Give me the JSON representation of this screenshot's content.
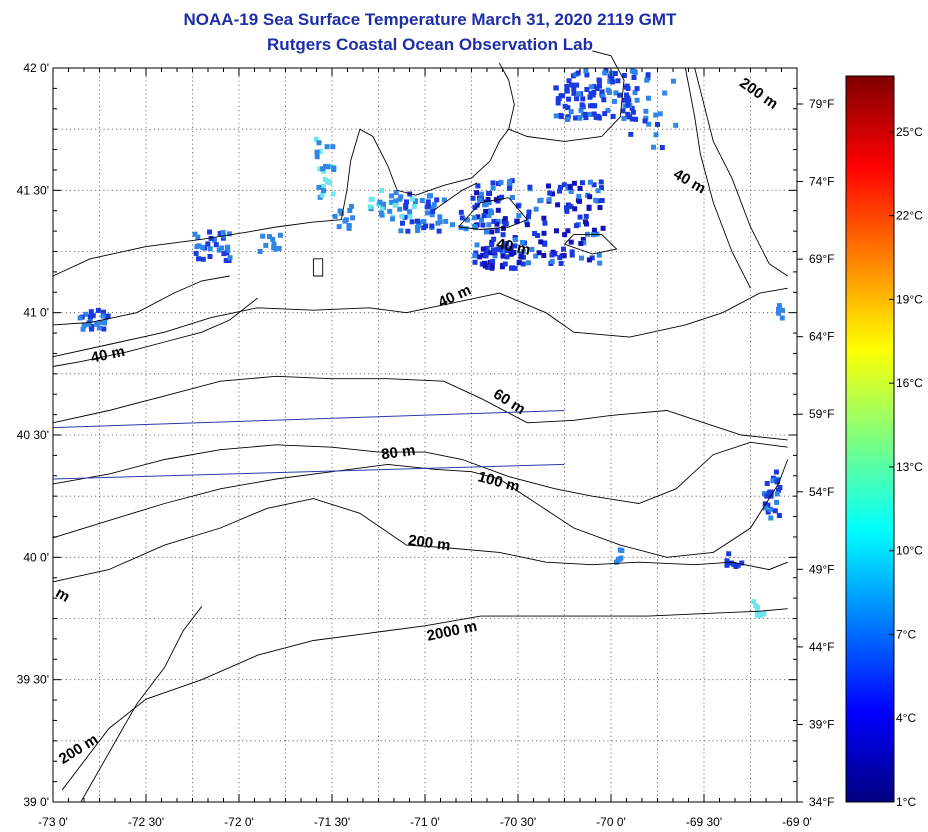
{
  "title": "NOAA-19 Sea Surface Temperature March 31, 2020 2119 GMT",
  "subtitle": "Rutgers Coastal Ocean Observation Lab",
  "map": {
    "lon_range": [
      -73.0,
      -69.0
    ],
    "lat_range": [
      39.0,
      42.0
    ],
    "grid": "dotted, every 15 minutes",
    "lat_ticks": [
      {
        "lat": 42.0,
        "label": "42 0'"
      },
      {
        "lat": 41.5,
        "label": "41 30'"
      },
      {
        "lat": 41.0,
        "label": "41 0'"
      },
      {
        "lat": 40.5,
        "label": "40 30'"
      },
      {
        "lat": 40.0,
        "label": "40 0'"
      },
      {
        "lat": 39.5,
        "label": "39 30'"
      },
      {
        "lat": 39.0,
        "label": "39 0'"
      }
    ],
    "lon_ticks": [
      {
        "lon": -73.0,
        "label": "-73 0'"
      },
      {
        "lon": -72.5,
        "label": "-72 30'"
      },
      {
        "lon": -72.0,
        "label": "-72 0'"
      },
      {
        "lon": -71.5,
        "label": "-71 30'"
      },
      {
        "lon": -71.0,
        "label": "-71 0'"
      },
      {
        "lon": -70.5,
        "label": "-70 30'"
      },
      {
        "lon": -70.0,
        "label": "-70 0'"
      },
      {
        "lon": -69.5,
        "label": "-69 30'"
      },
      {
        "lon": -69.0,
        "label": "-69 0'"
      }
    ],
    "fahrenheit_ticks": [
      "79°F",
      "74°F",
      "69°F",
      "64°F",
      "59°F",
      "54°F",
      "49°F",
      "44°F",
      "39°F",
      "34°F"
    ],
    "contour_labels": [
      {
        "text": "200 m",
        "lon": -69.22,
        "lat": 41.88,
        "rot": 35
      },
      {
        "text": "40 m",
        "lon": -69.59,
        "lat": 41.52,
        "rot": 30
      },
      {
        "text": "40 m",
        "lon": -70.53,
        "lat": 41.25,
        "rot": 12
      },
      {
        "text": "40 m",
        "lon": -70.83,
        "lat": 41.05,
        "rot": -25
      },
      {
        "text": "40 m",
        "lon": -72.7,
        "lat": 40.81,
        "rot": -12
      },
      {
        "text": "60 m",
        "lon": -70.56,
        "lat": 40.62,
        "rot": 32
      },
      {
        "text": "80 m",
        "lon": -71.14,
        "lat": 40.41,
        "rot": -8
      },
      {
        "text": "100 m",
        "lon": -70.61,
        "lat": 40.29,
        "rot": 15
      },
      {
        "text": "200 m",
        "lon": -70.98,
        "lat": 40.04,
        "rot": 8
      },
      {
        "text": "2000 m",
        "lon": -70.85,
        "lat": 39.68,
        "rot": -12
      },
      {
        "text": "200 m",
        "lon": -72.85,
        "lat": 39.2,
        "rot": -32
      },
      {
        "text": "m",
        "lon": -72.96,
        "lat": 39.83,
        "rot": 30
      }
    ]
  },
  "colorbar": {
    "range_c": [
      1,
      27
    ],
    "labels": [
      "25°C",
      "22°C",
      "19°C",
      "16°C",
      "13°C",
      "10°C",
      "7°C",
      "4°C",
      "1°C"
    ],
    "label_values": [
      25,
      22,
      19,
      16,
      13,
      10,
      7,
      4,
      1
    ],
    "colors": [
      "#00007f",
      "#0000ff",
      "#007fff",
      "#00ffff",
      "#7fff7f",
      "#ffff00",
      "#ff7f00",
      "#ff0000",
      "#7f0000"
    ]
  },
  "sst_colors": {
    "cold": "#1a3ae0",
    "mid": "#2f86e6",
    "warm": "#6ee6ee",
    "deep": "#1212b8"
  }
}
